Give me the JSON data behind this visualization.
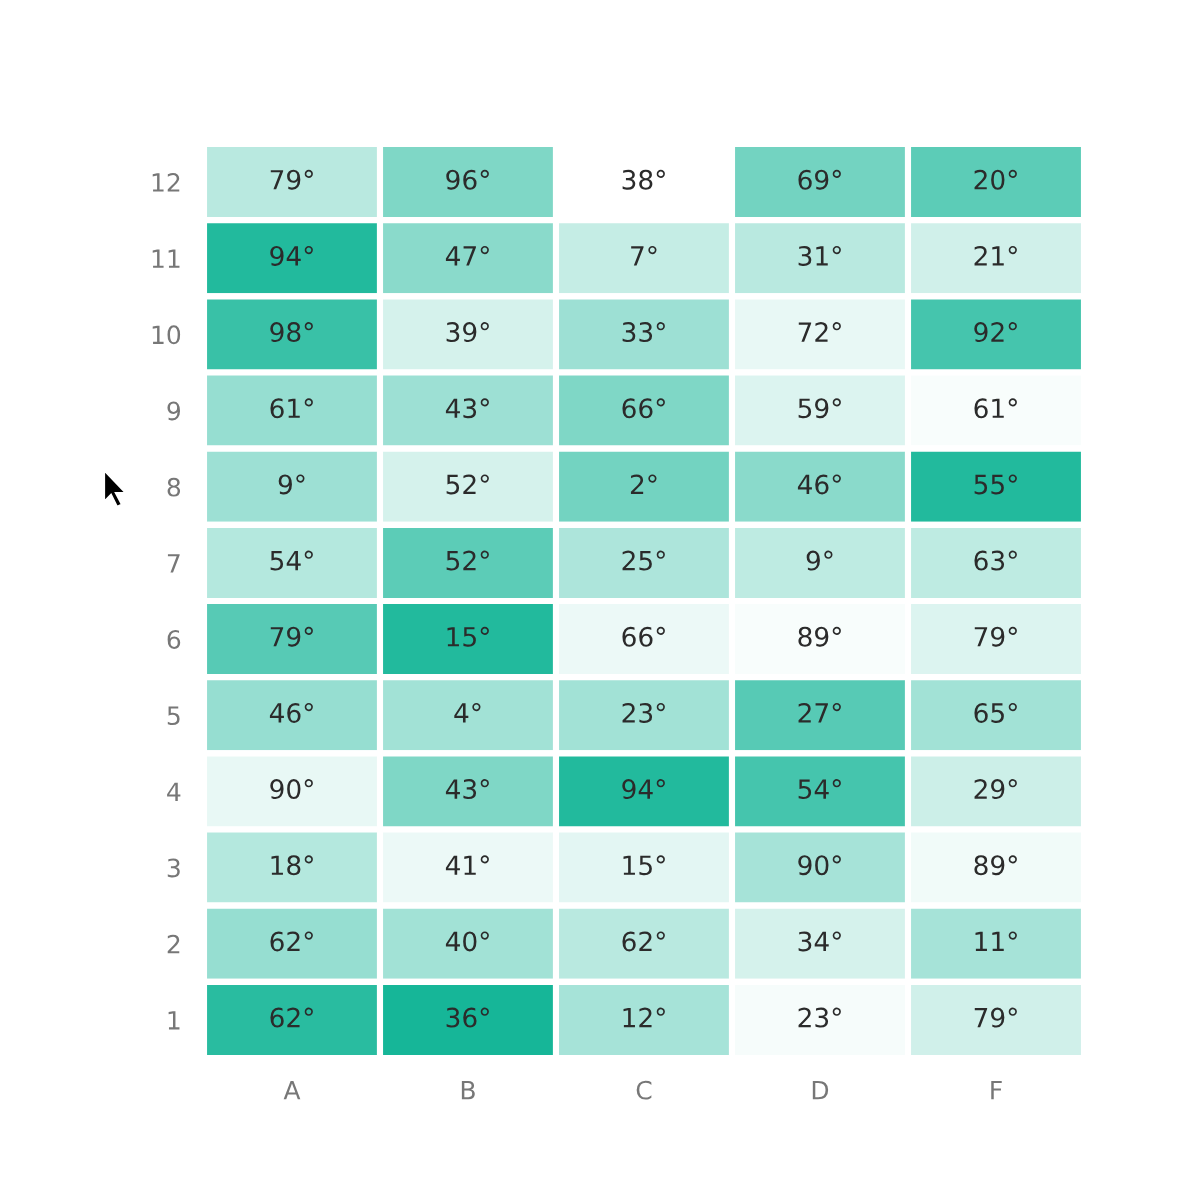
{
  "chart_data": {
    "type": "heatmap",
    "categories": [
      "A",
      "B",
      "C",
      "D",
      "F"
    ],
    "y_categories": [
      "12",
      "11",
      "10",
      "9",
      "8",
      "7",
      "6",
      "5",
      "4",
      "3",
      "2",
      "1"
    ],
    "cells": [
      [
        79,
        96,
        38,
        69,
        20
      ],
      [
        94,
        47,
        7,
        31,
        21
      ],
      [
        98,
        39,
        33,
        72,
        92
      ],
      [
        61,
        43,
        66,
        59,
        61
      ],
      [
        9,
        52,
        2,
        46,
        55
      ],
      [
        54,
        52,
        25,
        9,
        63
      ],
      [
        79,
        15,
        66,
        89,
        79
      ],
      [
        46,
        4,
        23,
        27,
        65
      ],
      [
        90,
        43,
        94,
        54,
        29
      ],
      [
        18,
        41,
        15,
        90,
        89
      ],
      [
        62,
        40,
        62,
        34,
        11
      ],
      [
        62,
        36,
        12,
        23,
        79
      ]
    ],
    "cell_labels": [
      [
        "79°",
        "96°",
        "38°",
        "69°",
        "20°"
      ],
      [
        "94°",
        "47°",
        "7°",
        "31°",
        "21°"
      ],
      [
        "98°",
        "39°",
        "33°",
        "72°",
        "92°"
      ],
      [
        "61°",
        "43°",
        "66°",
        "59°",
        "61°"
      ],
      [
        "9°",
        "52°",
        "2°",
        "46°",
        "55°"
      ],
      [
        "54°",
        "52°",
        "25°",
        "9°",
        "63°"
      ],
      [
        "79°",
        "15°",
        "66°",
        "89°",
        "79°"
      ],
      [
        "46°",
        "4°",
        "23°",
        "27°",
        "65°"
      ],
      [
        "90°",
        "43°",
        "94°",
        "54°",
        "29°"
      ],
      [
        "18°",
        "41°",
        "15°",
        "90°",
        "89°"
      ],
      [
        "62°",
        "40°",
        "62°",
        "34°",
        "11°"
      ],
      [
        "62°",
        "36°",
        "12°",
        "23°",
        "79°"
      ]
    ],
    "colors": [
      [
        "#b9e9e0",
        "#7fd7c6",
        "#ffffff",
        "#73d3c1",
        "#5cccb7"
      ],
      [
        "#22ba9d",
        "#8adacb",
        "#c5ede5",
        "#b9e9e0",
        "#d0f0ea"
      ],
      [
        "#39c1a7",
        "#d5f2ec",
        "#9de0d4",
        "#e8f8f5",
        "#45c5ad"
      ],
      [
        "#96ded1",
        "#9de0d4",
        "#7fd7c6",
        "#dcf4f0",
        "#f8fdfc"
      ],
      [
        "#9de0d4",
        "#d5f2ec",
        "#73d3c1",
        "#8adacb",
        "#22ba9d"
      ],
      [
        "#b4e8de",
        "#5cccb7",
        "#ade5db",
        "#beebe2",
        "#beebe2"
      ],
      [
        "#57cab5",
        "#22ba9d",
        "#ecf9f7",
        "#f8fdfc",
        "#dcf4f0"
      ],
      [
        "#96ded1",
        "#a2e2d6",
        "#a2e2d6",
        "#57cab5",
        "#a2e2d6"
      ],
      [
        "#e8f8f5",
        "#7fd7c6",
        "#22ba9d",
        "#45c5ad",
        "#ccefe8"
      ],
      [
        "#b4e8de",
        "#ecf9f7",
        "#e3f6f3",
        "#a6e3d8",
        "#f1fbf9"
      ],
      [
        "#96ded1",
        "#a2e2d6",
        "#b9e9e0",
        "#d5f2ec",
        "#a6e3d8"
      ],
      [
        "#29bca0",
        "#16b698",
        "#a6e3d8",
        "#f6fcfb",
        "#d0f0ea"
      ]
    ]
  }
}
